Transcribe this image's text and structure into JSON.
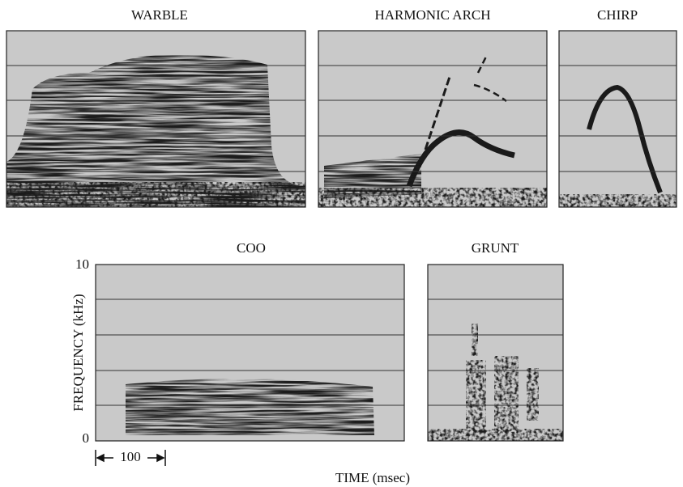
{
  "panels": [
    {
      "title": "WARBLE"
    },
    {
      "title": "HARMONIC ARCH"
    },
    {
      "title": "CHIRP"
    },
    {
      "title": "COO"
    },
    {
      "title": "GRUNT"
    }
  ],
  "axes": {
    "y_label": "FREQUENCY (kHz)",
    "y_ticks": [
      10,
      0
    ],
    "x_label": "TIME (msec)",
    "scale_bar": 100
  }
}
